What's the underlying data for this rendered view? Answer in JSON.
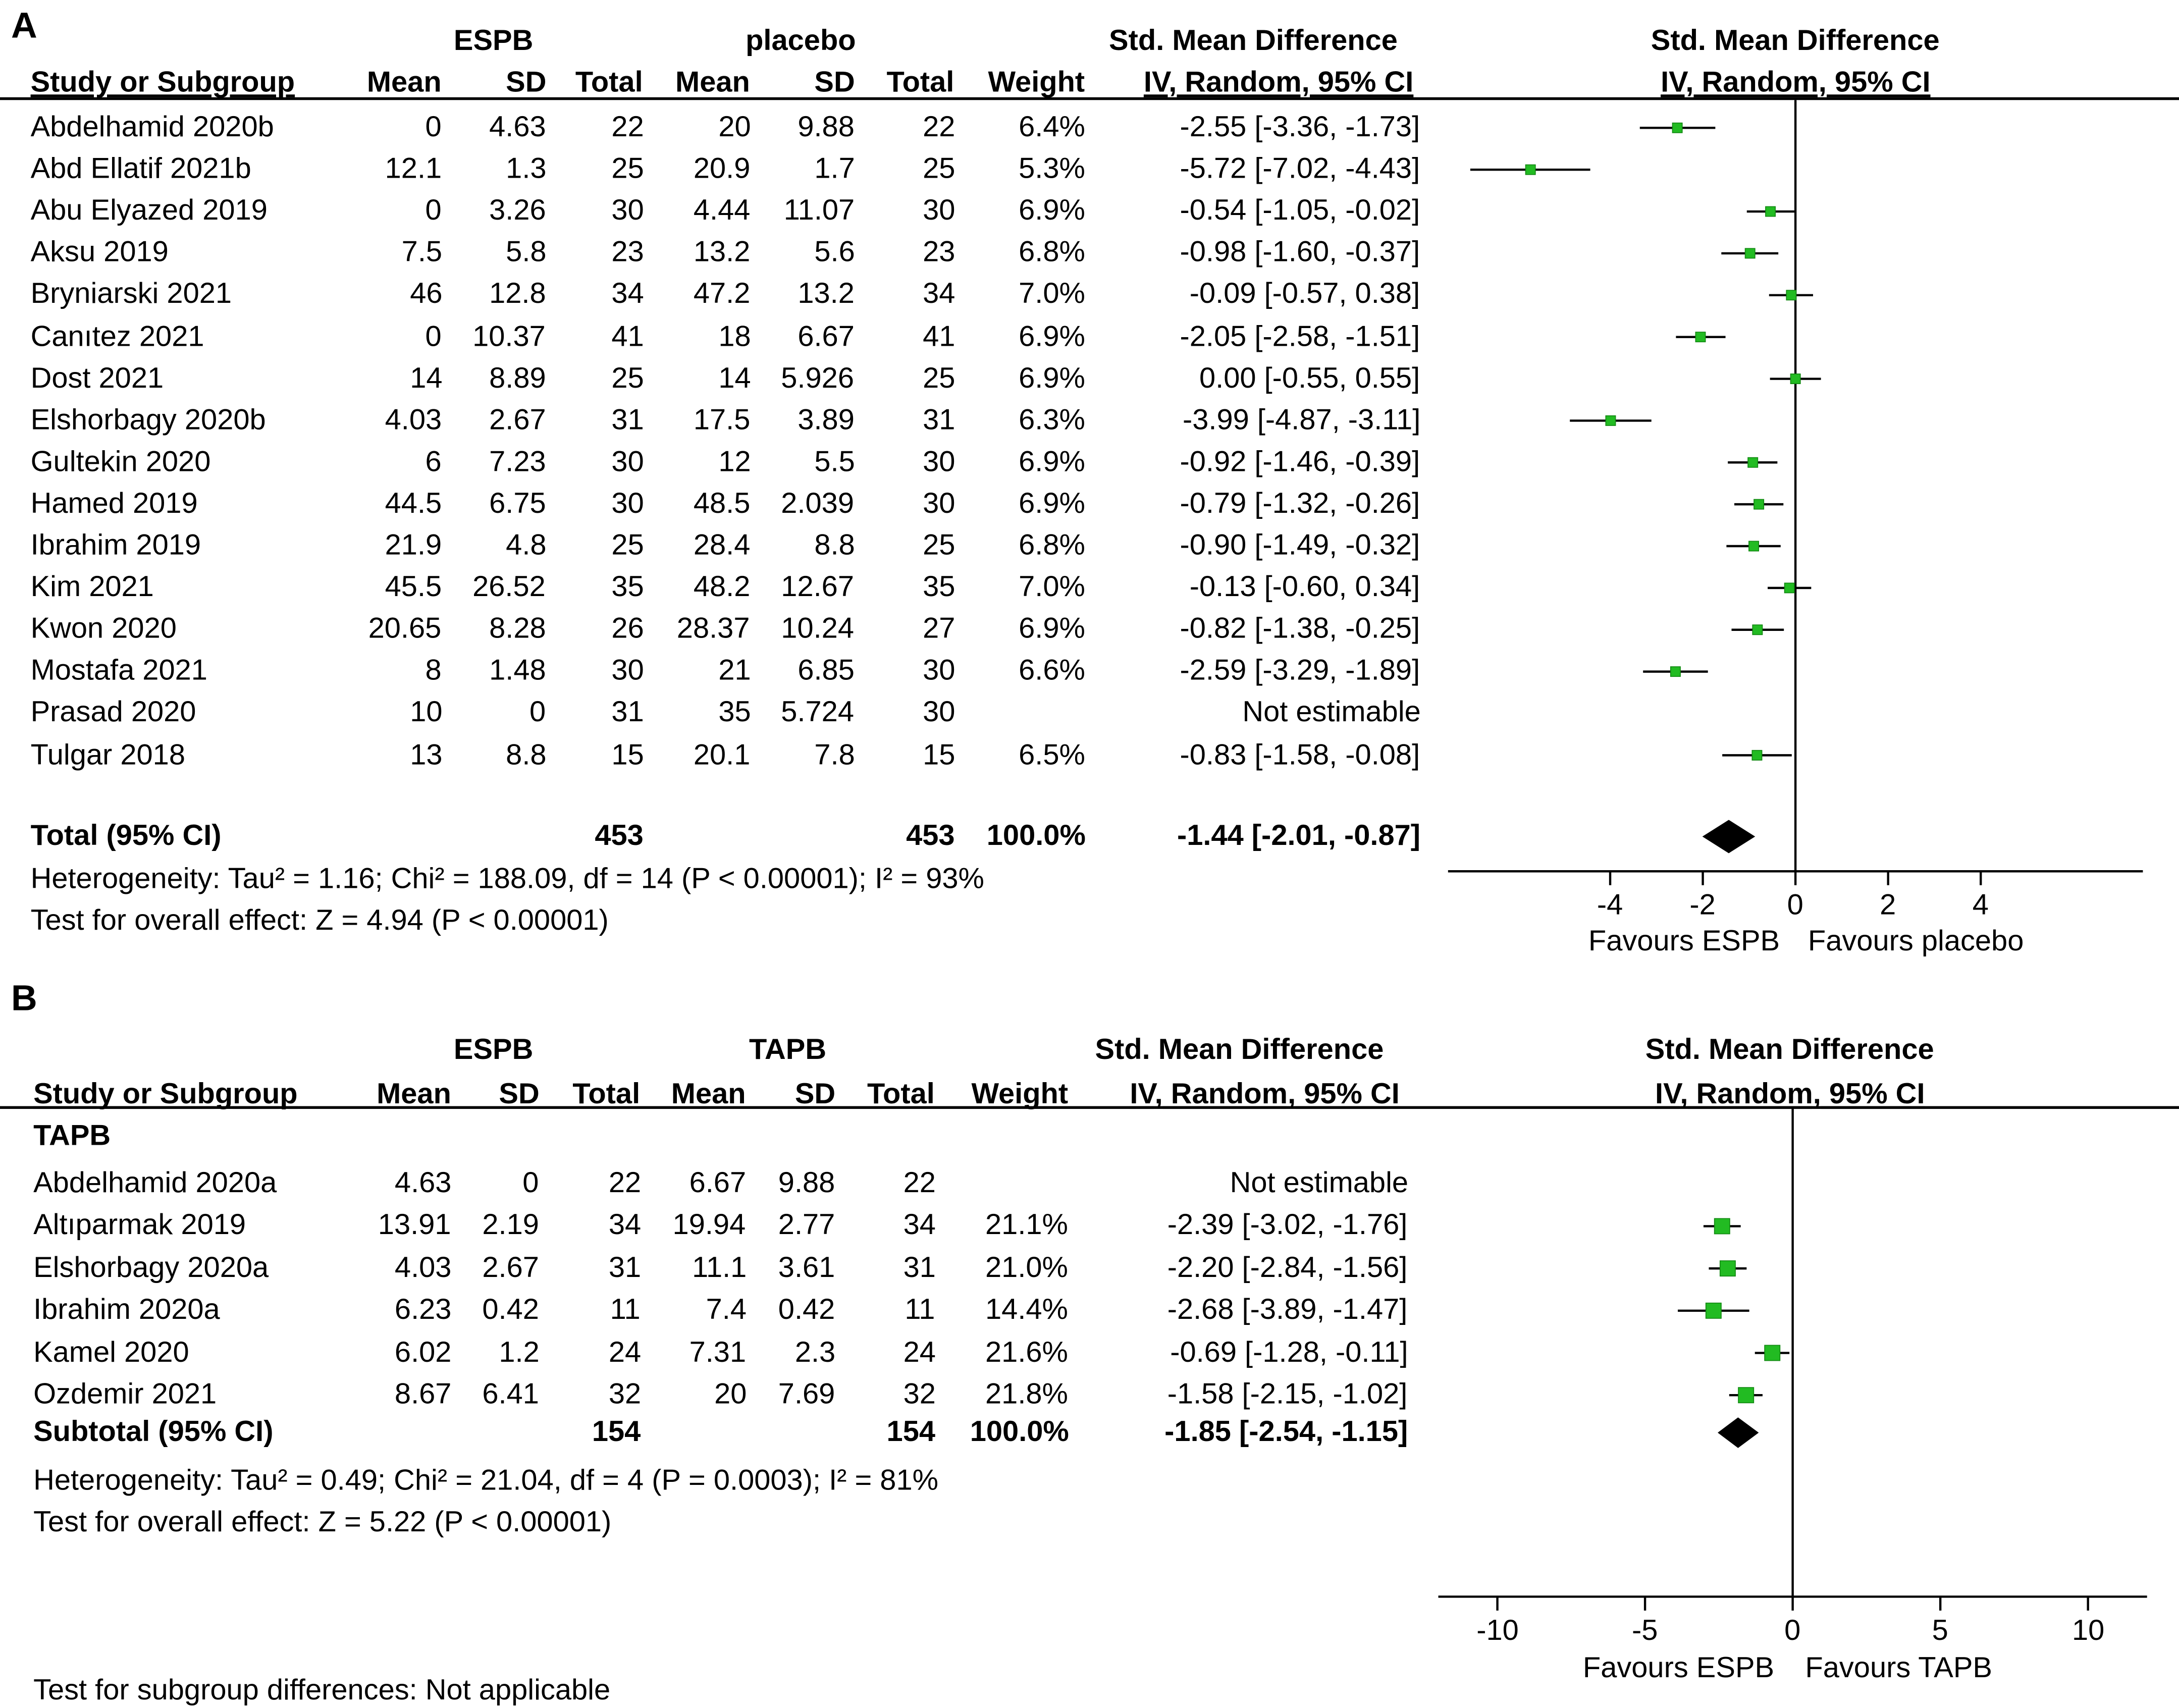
{
  "chart_data": [
    {
      "type": "forest",
      "panel_label": "A",
      "group_labels": {
        "experimental": "ESPB",
        "control": "placebo"
      },
      "column_headers": {
        "study": "Study or Subgroup",
        "mean": "Mean",
        "sd": "SD",
        "total": "Total",
        "weight": "Weight"
      },
      "effect_header": {
        "line1": "Std. Mean Difference",
        "line2": "IV, Random, 95% CI"
      },
      "plot_header": {
        "line1": "Std. Mean Difference",
        "line2": "IV, Random, 95% CI"
      },
      "studies": [
        {
          "name": "Abdelhamid 2020b",
          "e_mean": "0",
          "e_sd": "4.63",
          "e_total": "22",
          "c_mean": "20",
          "c_sd": "9.88",
          "c_total": "22",
          "weight": "6.4%",
          "ci_text": "-2.55 [-3.36, -1.73]",
          "smd": -2.55,
          "lo": -3.36,
          "hi": -1.73
        },
        {
          "name": "Abd Ellatif 2021b",
          "e_mean": "12.1",
          "e_sd": "1.3",
          "e_total": "25",
          "c_mean": "20.9",
          "c_sd": "1.7",
          "c_total": "25",
          "weight": "5.3%",
          "ci_text": "-5.72 [-7.02, -4.43]",
          "smd": -5.72,
          "lo": -7.02,
          "hi": -4.43
        },
        {
          "name": "Abu Elyazed 2019",
          "e_mean": "0",
          "e_sd": "3.26",
          "e_total": "30",
          "c_mean": "4.44",
          "c_sd": "11.07",
          "c_total": "30",
          "weight": "6.9%",
          "ci_text": "-0.54 [-1.05, -0.02]",
          "smd": -0.54,
          "lo": -1.05,
          "hi": -0.02
        },
        {
          "name": "Aksu 2019",
          "e_mean": "7.5",
          "e_sd": "5.8",
          "e_total": "23",
          "c_mean": "13.2",
          "c_sd": "5.6",
          "c_total": "23",
          "weight": "6.8%",
          "ci_text": "-0.98 [-1.60, -0.37]",
          "smd": -0.98,
          "lo": -1.6,
          "hi": -0.37
        },
        {
          "name": "Bryniarski 2021",
          "e_mean": "46",
          "e_sd": "12.8",
          "e_total": "34",
          "c_mean": "47.2",
          "c_sd": "13.2",
          "c_total": "34",
          "weight": "7.0%",
          "ci_text": "-0.09 [-0.57, 0.38]",
          "smd": -0.09,
          "lo": -0.57,
          "hi": 0.38
        },
        {
          "name": "Canıtez 2021",
          "e_mean": "0",
          "e_sd": "10.37",
          "e_total": "41",
          "c_mean": "18",
          "c_sd": "6.67",
          "c_total": "41",
          "weight": "6.9%",
          "ci_text": "-2.05 [-2.58, -1.51]",
          "smd": -2.05,
          "lo": -2.58,
          "hi": -1.51
        },
        {
          "name": "Dost 2021",
          "e_mean": "14",
          "e_sd": "8.89",
          "e_total": "25",
          "c_mean": "14",
          "c_sd": "5.926",
          "c_total": "25",
          "weight": "6.9%",
          "ci_text": "0.00 [-0.55, 0.55]",
          "smd": 0.0,
          "lo": -0.55,
          "hi": 0.55
        },
        {
          "name": "Elshorbagy 2020b",
          "e_mean": "4.03",
          "e_sd": "2.67",
          "e_total": "31",
          "c_mean": "17.5",
          "c_sd": "3.89",
          "c_total": "31",
          "weight": "6.3%",
          "ci_text": "-3.99 [-4.87, -3.11]",
          "smd": -3.99,
          "lo": -4.87,
          "hi": -3.11
        },
        {
          "name": "Gultekin 2020",
          "e_mean": "6",
          "e_sd": "7.23",
          "e_total": "30",
          "c_mean": "12",
          "c_sd": "5.5",
          "c_total": "30",
          "weight": "6.9%",
          "ci_text": "-0.92 [-1.46, -0.39]",
          "smd": -0.92,
          "lo": -1.46,
          "hi": -0.39
        },
        {
          "name": "Hamed 2019",
          "e_mean": "44.5",
          "e_sd": "6.75",
          "e_total": "30",
          "c_mean": "48.5",
          "c_sd": "2.039",
          "c_total": "30",
          "weight": "6.9%",
          "ci_text": "-0.79 [-1.32, -0.26]",
          "smd": -0.79,
          "lo": -1.32,
          "hi": -0.26
        },
        {
          "name": "Ibrahim 2019",
          "e_mean": "21.9",
          "e_sd": "4.8",
          "e_total": "25",
          "c_mean": "28.4",
          "c_sd": "8.8",
          "c_total": "25",
          "weight": "6.8%",
          "ci_text": "-0.90 [-1.49, -0.32]",
          "smd": -0.9,
          "lo": -1.49,
          "hi": -0.32
        },
        {
          "name": "Kim 2021",
          "e_mean": "45.5",
          "e_sd": "26.52",
          "e_total": "35",
          "c_mean": "48.2",
          "c_sd": "12.67",
          "c_total": "35",
          "weight": "7.0%",
          "ci_text": "-0.13 [-0.60, 0.34]",
          "smd": -0.13,
          "lo": -0.6,
          "hi": 0.34
        },
        {
          "name": "Kwon 2020",
          "e_mean": "20.65",
          "e_sd": "8.28",
          "e_total": "26",
          "c_mean": "28.37",
          "c_sd": "10.24",
          "c_total": "27",
          "weight": "6.9%",
          "ci_text": "-0.82 [-1.38, -0.25]",
          "smd": -0.82,
          "lo": -1.38,
          "hi": -0.25
        },
        {
          "name": "Mostafa 2021",
          "e_mean": "8",
          "e_sd": "1.48",
          "e_total": "30",
          "c_mean": "21",
          "c_sd": "6.85",
          "c_total": "30",
          "weight": "6.6%",
          "ci_text": "-2.59 [-3.29, -1.89]",
          "smd": -2.59,
          "lo": -3.29,
          "hi": -1.89
        },
        {
          "name": "Prasad 2020",
          "e_mean": "10",
          "e_sd": "0",
          "e_total": "31",
          "c_mean": "35",
          "c_sd": "5.724",
          "c_total": "30",
          "weight": "",
          "ci_text": "Not estimable",
          "smd": null,
          "lo": null,
          "hi": null
        },
        {
          "name": "Tulgar 2018",
          "e_mean": "13",
          "e_sd": "8.8",
          "e_total": "15",
          "c_mean": "20.1",
          "c_sd": "7.8",
          "c_total": "15",
          "weight": "6.5%",
          "ci_text": "-0.83 [-1.58, -0.08]",
          "smd": -0.83,
          "lo": -1.58,
          "hi": -0.08
        }
      ],
      "total": {
        "label": "Total (95% CI)",
        "e_total": "453",
        "c_total": "453",
        "weight": "100.0%",
        "ci_text": "-1.44 [-2.01, -0.87]",
        "smd": -1.44,
        "lo": -2.01,
        "hi": -0.87
      },
      "heterogeneity": "Heterogeneity: Tau² = 1.16; Chi² = 188.09, df = 14 (P < 0.00001); I² = 93%",
      "overall_effect": "Test for overall effect: Z = 4.94 (P < 0.00001)",
      "xlim": [
        -7.5,
        7.5
      ],
      "xticks": [
        -4,
        -2,
        0,
        2,
        4
      ],
      "xtick_labels": [
        "-4",
        "-2",
        "0",
        "2",
        "4"
      ],
      "favours_left": "Favours ESPB",
      "favours_right": "Favours placebo"
    },
    {
      "type": "forest",
      "panel_label": "B",
      "group_labels": {
        "experimental": "ESPB",
        "control": "TAPB"
      },
      "column_headers": {
        "study": "Study or Subgroup",
        "mean": "Mean",
        "sd": "SD",
        "total": "Total",
        "weight": "Weight"
      },
      "effect_header": {
        "line1": "Std. Mean Difference",
        "line2": "IV, Random, 95% CI"
      },
      "plot_header": {
        "line1": "Std. Mean Difference",
        "line2": "IV, Random, 95% CI"
      },
      "subgroup_label": "TAPB",
      "studies": [
        {
          "name": "Abdelhamid 2020a",
          "e_mean": "4.63",
          "e_sd": "0",
          "e_total": "22",
          "c_mean": "6.67",
          "c_sd": "9.88",
          "c_total": "22",
          "weight": "",
          "ci_text": "Not estimable",
          "smd": null,
          "lo": null,
          "hi": null
        },
        {
          "name": "Altıparmak 2019",
          "e_mean": "13.91",
          "e_sd": "2.19",
          "e_total": "34",
          "c_mean": "19.94",
          "c_sd": "2.77",
          "c_total": "34",
          "weight": "21.1%",
          "ci_text": "-2.39 [-3.02, -1.76]",
          "smd": -2.39,
          "lo": -3.02,
          "hi": -1.76
        },
        {
          "name": "Elshorbagy 2020a",
          "e_mean": "4.03",
          "e_sd": "2.67",
          "e_total": "31",
          "c_mean": "11.1",
          "c_sd": "3.61",
          "c_total": "31",
          "weight": "21.0%",
          "ci_text": "-2.20 [-2.84, -1.56]",
          "smd": -2.2,
          "lo": -2.84,
          "hi": -1.56
        },
        {
          "name": "Ibrahim 2020a",
          "e_mean": "6.23",
          "e_sd": "0.42",
          "e_total": "11",
          "c_mean": "7.4",
          "c_sd": "0.42",
          "c_total": "11",
          "weight": "14.4%",
          "ci_text": "-2.68 [-3.89, -1.47]",
          "smd": -2.68,
          "lo": -3.89,
          "hi": -1.47
        },
        {
          "name": "Kamel 2020",
          "e_mean": "6.02",
          "e_sd": "1.2",
          "e_total": "24",
          "c_mean": "7.31",
          "c_sd": "2.3",
          "c_total": "24",
          "weight": "21.6%",
          "ci_text": "-0.69 [-1.28, -0.11]",
          "smd": -0.69,
          "lo": -1.28,
          "hi": -0.11
        },
        {
          "name": "Ozdemir 2021",
          "e_mean": "8.67",
          "e_sd": "6.41",
          "e_total": "32",
          "c_mean": "20",
          "c_sd": "7.69",
          "c_total": "32",
          "weight": "21.8%",
          "ci_text": "-1.58 [-2.15, -1.02]",
          "smd": -1.58,
          "lo": -2.15,
          "hi": -1.02
        }
      ],
      "total": {
        "label": "Subtotal (95% CI)",
        "e_total": "154",
        "c_total": "154",
        "weight": "100.0%",
        "ci_text": "-1.85 [-2.54, -1.15]",
        "smd": -1.85,
        "lo": -2.54,
        "hi": -1.15
      },
      "heterogeneity": "Heterogeneity: Tau² = 0.49; Chi² = 21.04, df = 4 (P = 0.0003); I² = 81%",
      "overall_effect": "Test for overall effect: Z = 5.22 (P < 0.00001)",
      "subgroup_differences": "Test for subgroup differences: Not applicable",
      "xlim": [
        -12,
        12
      ],
      "xticks": [
        -10,
        -5,
        0,
        5,
        10
      ],
      "xtick_labels": [
        "-10",
        "-5",
        "0",
        "5",
        "10"
      ],
      "favours_left": "Favours ESPB",
      "favours_right": "Favours TAPB"
    }
  ],
  "colors": {
    "marker": "#22bb22",
    "marker_outline": "#118811",
    "text": "#000000",
    "line": "#000000"
  }
}
